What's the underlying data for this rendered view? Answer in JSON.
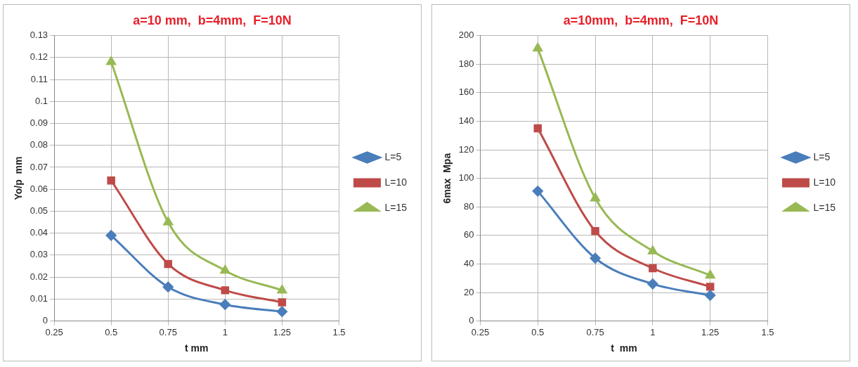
{
  "chart_data": [
    {
      "type": "line",
      "title": "a=10 mm,  b=4mm,  F=10N",
      "xlabel": "t mm",
      "ylabel": "Yo/p  mm",
      "x": [
        0.5,
        0.75,
        1,
        1.25
      ],
      "series": [
        {
          "name": "L=5",
          "color": "#4a7ebb",
          "marker": "diamond",
          "values": [
            0.039,
            0.0155,
            0.0075,
            0.0043
          ]
        },
        {
          "name": "L=10",
          "color": "#be4b48",
          "marker": "square",
          "values": [
            0.064,
            0.026,
            0.014,
            0.0085
          ]
        },
        {
          "name": "L=15",
          "color": "#98b954",
          "marker": "triangle",
          "values": [
            0.118,
            0.045,
            0.023,
            0.014
          ]
        }
      ],
      "xlim": [
        0.25,
        1.5
      ],
      "xticks": [
        0.25,
        0.5,
        0.75,
        1,
        1.25,
        1.5
      ],
      "ylim": [
        0,
        0.13
      ],
      "yticks": [
        0,
        0.01,
        0.02,
        0.03,
        0.04,
        0.05,
        0.06,
        0.07,
        0.08,
        0.09,
        0.1,
        0.11,
        0.12,
        0.13
      ],
      "grid": true,
      "legend": "right"
    },
    {
      "type": "line",
      "title": "a=10mm,  b=4mm,  F=10N",
      "xlabel": "t  mm",
      "ylabel": "6max  Mpa",
      "x": [
        0.5,
        0.75,
        1,
        1.25
      ],
      "series": [
        {
          "name": "L=5",
          "color": "#4a7ebb",
          "marker": "diamond",
          "values": [
            91,
            44,
            26,
            18
          ]
        },
        {
          "name": "L=10",
          "color": "#be4b48",
          "marker": "square",
          "values": [
            135,
            63,
            37,
            24
          ]
        },
        {
          "name": "L=15",
          "color": "#98b954",
          "marker": "triangle",
          "values": [
            191,
            86,
            49,
            32
          ]
        }
      ],
      "xlim": [
        0.25,
        1.5
      ],
      "xticks": [
        0.25,
        0.5,
        0.75,
        1,
        1.25,
        1.5
      ],
      "ylim": [
        0,
        200
      ],
      "yticks": [
        0,
        20,
        40,
        60,
        80,
        100,
        120,
        140,
        160,
        180,
        200
      ],
      "grid": true,
      "legend": "right"
    }
  ]
}
